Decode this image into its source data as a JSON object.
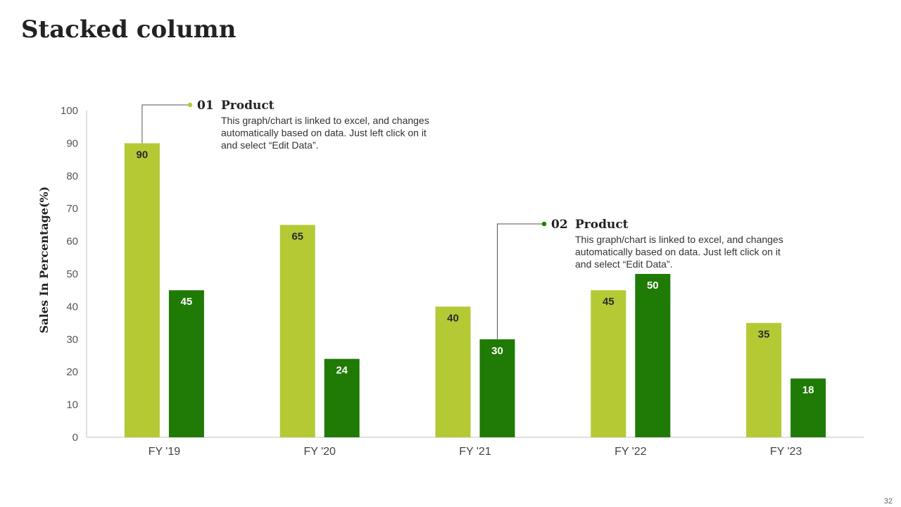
{
  "slide": {
    "title": "Stacked column",
    "page_number": "32"
  },
  "colors": {
    "series1": "#b5c935",
    "series2": "#1f7a06",
    "axis": "#c0c0c0"
  },
  "callouts": [
    {
      "number": "01",
      "title": "Product",
      "lines": [
        "This graph/chart is linked to excel, and changes",
        "automatically based on data. Just left click on it",
        "and select “Edit Data”."
      ]
    },
    {
      "number": "02",
      "title": "Product",
      "lines": [
        "This graph/chart is linked to excel, and changes",
        "automatically based on data. Just left click on it",
        "and select “Edit Data”."
      ]
    }
  ],
  "chart_data": {
    "type": "bar",
    "title": "",
    "xlabel": "",
    "ylabel": "Sales In Percentage(%)",
    "ylim": [
      0,
      100
    ],
    "yticks": [
      0,
      10,
      20,
      30,
      40,
      50,
      60,
      70,
      80,
      90,
      100
    ],
    "categories": [
      "FY '19",
      "FY '20",
      "FY '21",
      "FY '22",
      "FY '23"
    ],
    "series": [
      {
        "name": "Product 01",
        "values": [
          90,
          65,
          40,
          45,
          35
        ]
      },
      {
        "name": "Product 02",
        "values": [
          45,
          24,
          30,
          50,
          18
        ]
      }
    ],
    "grid": false,
    "legend": "none"
  }
}
